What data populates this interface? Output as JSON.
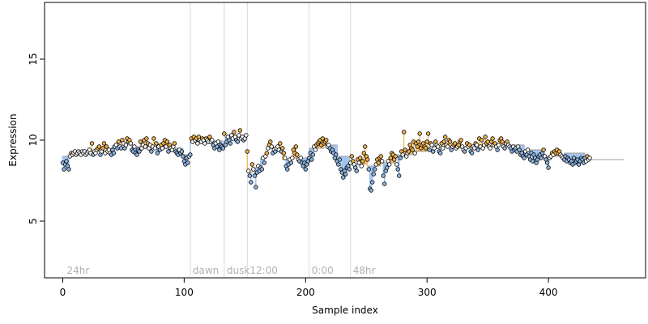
{
  "chart_data": {
    "type": "scatter",
    "xlabel": "Sample index",
    "ylabel": "Expression",
    "xlim": [
      -15,
      480
    ],
    "ylim": [
      1.5,
      18.5
    ],
    "x_ticks": [
      0,
      100,
      200,
      300,
      400
    ],
    "y_ticks": [
      5,
      10,
      15
    ],
    "grid": false,
    "legend": "none",
    "colors": {
      "point_stroke": "#000000",
      "point_fill_blue": "#8db6e6",
      "point_fill_orange": "#f2b24c",
      "point_fill_neutral": "#ffffff",
      "stem_blue": "#8db6e6",
      "stem_orange": "#f2b24c",
      "vline": "#d9d9d9",
      "marker_text": "#b0b0b0"
    },
    "markers": [
      {
        "x": 2,
        "label": "24hr",
        "line": false
      },
      {
        "x": 105,
        "label": "dawn",
        "line": true
      },
      {
        "x": 133,
        "label": "dusk",
        "line": true
      },
      {
        "x": 152,
        "label": "12:00",
        "line": true
      },
      {
        "x": 203,
        "label": "0:00",
        "line": true
      },
      {
        "x": 237,
        "label": "48hr",
        "line": true
      }
    ],
    "segments": [
      {
        "start": 0,
        "end": 8,
        "level": 9.0
      },
      {
        "start": 9,
        "end": 21,
        "level": 9.2
      },
      {
        "start": 22,
        "end": 40,
        "level": 9.3
      },
      {
        "start": 41,
        "end": 60,
        "level": 9.7
      },
      {
        "start": 61,
        "end": 80,
        "level": 9.6
      },
      {
        "start": 81,
        "end": 99,
        "level": 9.5
      },
      {
        "start": 100,
        "end": 104,
        "level": 9.1
      },
      {
        "start": 105,
        "end": 132,
        "level": 9.95
      },
      {
        "start": 133,
        "end": 151,
        "level": 10.2
      },
      {
        "start": 152,
        "end": 156,
        "level": 8.0
      },
      {
        "start": 157,
        "end": 162,
        "level": 8.3
      },
      {
        "start": 163,
        "end": 168,
        "level": 8.9
      },
      {
        "start": 169,
        "end": 180,
        "level": 9.5
      },
      {
        "start": 181,
        "end": 190,
        "level": 8.8
      },
      {
        "start": 191,
        "end": 202,
        "level": 8.9
      },
      {
        "start": 203,
        "end": 215,
        "level": 9.5
      },
      {
        "start": 216,
        "end": 226,
        "level": 9.7
      },
      {
        "start": 227,
        "end": 236,
        "level": 9.0
      },
      {
        "start": 237,
        "end": 250,
        "level": 8.5
      },
      {
        "start": 251,
        "end": 262,
        "level": 8.4
      },
      {
        "start": 263,
        "end": 275,
        "level": 8.6
      },
      {
        "start": 276,
        "end": 290,
        "level": 9.1
      },
      {
        "start": 291,
        "end": 300,
        "level": 9.3
      },
      {
        "start": 301,
        "end": 320,
        "level": 9.6
      },
      {
        "start": 321,
        "end": 340,
        "level": 9.5
      },
      {
        "start": 341,
        "end": 360,
        "level": 9.6
      },
      {
        "start": 361,
        "end": 380,
        "level": 9.7
      },
      {
        "start": 381,
        "end": 395,
        "level": 9.4
      },
      {
        "start": 396,
        "end": 412,
        "level": 9.0
      },
      {
        "start": 413,
        "end": 430,
        "level": 9.2
      },
      {
        "start": 431,
        "end": 462,
        "level": 8.8
      }
    ],
    "series": [
      {
        "x_start": 0,
        "values": [
          8.6,
          8.2,
          8.5,
          8.7,
          8.4,
          8.2,
          9.0,
          9.2,
          9.1,
          9.2,
          9.3,
          9.1,
          9.2,
          9.3,
          9.2,
          9.1,
          9.3,
          9.2,
          9.3,
          9.1,
          9.2,
          9.3,
          9.4,
          9.2,
          9.8,
          9.1,
          9.3,
          9.2,
          9.4,
          9.5,
          9.6,
          9.1,
          9.3,
          9.5,
          9.8,
          9.2,
          9.6,
          9.3,
          9.4,
          9.2,
          9.1,
          9.4,
          9.2,
          9.6,
          9.7,
          9.5,
          9.9,
          9.6,
          9.5,
          10.0,
          9.8,
          9.5,
          9.7,
          10.1,
          9.9,
          10.0,
          9.8,
          9.4,
          9.3,
          9.6,
          9.2,
          9.1,
          9.4,
          9.3,
          9.9,
          9.5,
          9.7,
          10.0,
          9.6,
          10.1,
          9.8,
          9.5,
          9.7,
          9.3,
          9.6,
          10.1,
          9.5,
          9.8,
          9.2,
          9.6,
          9.4,
          9.7,
          9.5,
          9.8,
          10.0,
          9.6,
          9.9,
          9.3,
          9.7,
          9.5,
          9.4,
          9.6,
          9.8,
          9.3,
          9.2,
          9.1,
          9.4,
          9.2,
          9.3,
          9.0,
          8.7,
          8.5,
          8.9,
          8.6,
          9.0,
          9.1,
          10.1,
          9.9,
          10.2,
          10.0,
          10.1,
          9.8,
          10.2,
          10.0,
          9.9,
          10.1,
          10.0,
          9.8,
          10.1,
          10.0,
          9.9,
          10.2,
          9.9,
          10.0,
          9.7,
          9.5,
          9.8,
          9.6,
          9.9,
          9.4,
          9.7,
          9.6,
          9.5,
          10.4,
          9.7,
          9.9,
          10.2,
          10.0,
          9.8,
          10.3,
          10.1,
          10.5,
          10.2,
          10.0,
          9.9,
          10.3,
          10.6,
          10.1,
          10.2,
          10.0,
          10.1,
          10.3,
          9.3,
          8.1,
          7.8,
          7.4,
          8.5,
          8.2,
          7.8,
          7.1,
          8.0,
          8.4,
          8.1,
          8.3,
          8.2,
          8.9,
          8.6,
          9.0,
          9.2,
          9.5,
          9.7,
          9.9,
          9.6,
          9.2,
          9.4,
          9.3,
          9.5,
          9.6,
          9.4,
          9.8,
          9.3,
          9.5,
          9.2,
          8.9,
          8.4,
          8.2,
          8.5,
          8.8,
          8.6,
          8.9,
          9.4,
          9.2,
          9.6,
          9.1,
          8.8,
          8.7,
          8.9,
          8.6,
          8.4,
          8.6,
          8.2,
          8.5,
          8.7,
          8.9,
          9.2,
          8.8,
          9.1,
          9.6,
          9.4,
          9.7,
          9.8,
          9.9,
          10.0,
          9.7,
          10.1,
          9.8,
          9.9,
          10.0,
          9.6,
          9.7,
          9.5,
          9.3,
          9.4,
          9.2,
          8.9,
          9.1,
          8.7,
          8.5,
          8.8,
          8.2,
          8.0,
          7.7,
          8.1,
          7.9,
          8.3,
          8.4,
          8.2,
          8.6,
          9.0,
          8.7,
          8.5,
          8.3,
          8.1,
          8.8,
          8.6,
          8.9,
          8.4,
          8.7,
          9.2,
          9.6,
          9.0,
          8.8,
          8.2,
          7.0,
          6.9,
          7.4,
          7.9,
          8.2,
          8.5,
          8.8,
          8.6,
          8.9,
          9.0,
          8.7,
          7.8,
          7.3,
          8.1,
          8.3,
          8.7,
          8.5,
          8.9,
          9.2,
          9.1,
          8.8,
          9.0,
          8.5,
          8.2,
          7.8,
          8.9,
          9.3,
          9.1,
          10.5,
          9.4,
          9.0,
          9.2,
          9.3,
          9.7,
          9.5,
          9.4,
          9.9,
          9.2,
          9.8,
          9.6,
          9.9,
          10.4,
          9.5,
          9.7,
          9.8,
          9.6,
          9.5,
          9.9,
          10.4,
          9.4,
          9.8,
          9.7,
          9.3,
          9.5,
          9.9,
          9.7,
          9.6,
          9.3,
          9.2,
          9.8,
          9.5,
          9.9,
          10.2,
          9.7,
          9.6,
          10.0,
          9.9,
          9.4,
          9.6,
          9.7,
          9.8,
          9.5,
          9.6,
          9.7,
          9.9,
          10.0,
          9.6,
          9.4,
          9.3,
          9.5,
          9.8,
          9.6,
          9.7,
          9.3,
          9.2,
          9.6,
          9.5,
          9.8,
          9.7,
          9.4,
          10.1,
          9.6,
          10.0,
          9.5,
          9.7,
          10.2,
          9.8,
          9.9,
          9.6,
          9.5,
          9.9,
          10.1,
          9.7,
          9.8,
          9.6,
          9.4,
          9.7,
          10.0,
          10.1,
          9.9,
          9.6,
          9.5,
          9.8,
          9.9,
          9.7,
          9.6,
          9.5,
          9.3,
          9.6,
          9.4,
          9.5,
          9.3,
          9.6,
          9.4,
          9.1,
          9.2,
          9.0,
          8.9,
          9.3,
          9.1,
          9.4,
          9.0,
          8.8,
          9.2,
          8.7,
          9.1,
          8.9,
          8.6,
          8.8,
          9.0,
          9.1,
          8.9,
          9.2,
          9.4,
          9.0,
          8.8,
          8.6,
          8.3,
          8.9,
          9.0,
          9.2,
          9.1,
          9.3,
          9.2,
          9.4,
          9.2,
          9.3,
          9.1,
          9.0,
          8.9,
          8.8,
          9.0,
          8.7,
          8.9,
          8.8,
          8.6,
          8.7,
          8.5,
          8.9,
          8.6,
          8.7,
          8.8,
          8.5,
          8.7,
          8.9,
          8.8,
          8.6,
          8.9,
          8.7,
          9.0,
          8.8,
          8.9
        ]
      }
    ]
  }
}
